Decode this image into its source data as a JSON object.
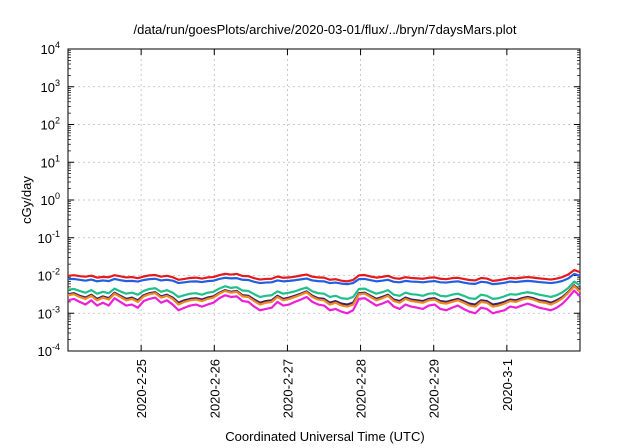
{
  "chart_data": {
    "type": "line",
    "title": "/data/run/goesPlots/archive/2020-03-01/flux/../bryn/7daysMars.plot",
    "xlabel": "Coordinated Universal Time (UTC)",
    "ylabel": "cGy/day",
    "y_scale": "log",
    "ylim": [
      0.0001,
      10000
    ],
    "xlim_days": [
      0,
      7
    ],
    "grid": true,
    "x_ticks": [
      {
        "day": 1,
        "label": "2020-2-25"
      },
      {
        "day": 2,
        "label": "2020-2-26"
      },
      {
        "day": 3,
        "label": "2020-2-27"
      },
      {
        "day": 4,
        "label": "2020-2-28"
      },
      {
        "day": 5,
        "label": "2020-2-29"
      },
      {
        "day": 6,
        "label": "2020-3-1"
      }
    ],
    "y_ticks": [
      {
        "value": 0.0001,
        "base": "10",
        "exp": "-4"
      },
      {
        "value": 0.001,
        "base": "10",
        "exp": "-3"
      },
      {
        "value": 0.01,
        "base": "10",
        "exp": "-2"
      },
      {
        "value": 0.1,
        "base": "10",
        "exp": "-1"
      },
      {
        "value": 1,
        "base": "10",
        "exp": "0"
      },
      {
        "value": 10,
        "base": "10",
        "exp": "1"
      },
      {
        "value": 100,
        "base": "10",
        "exp": "2"
      },
      {
        "value": 1000,
        "base": "10",
        "exp": "3"
      },
      {
        "value": 10000,
        "base": "10",
        "exp": "4"
      }
    ],
    "series": [
      {
        "color": "#e41a1c",
        "values": [
          0.0098,
          0.0102,
          0.0096,
          0.0093,
          0.0099,
          0.0088,
          0.0092,
          0.009,
          0.0102,
          0.0095,
          0.0089,
          0.0091,
          0.0085,
          0.0094,
          0.0101,
          0.0103,
          0.0093,
          0.0098,
          0.009,
          0.0077,
          0.0081,
          0.0086,
          0.0088,
          0.0083,
          0.0089,
          0.0091,
          0.0102,
          0.0111,
          0.0106,
          0.011,
          0.0097,
          0.0096,
          0.0085,
          0.0078,
          0.0081,
          0.0082,
          0.0094,
          0.0087,
          0.0089,
          0.0093,
          0.01,
          0.0106,
          0.0093,
          0.0089,
          0.0088,
          0.0077,
          0.008,
          0.0073,
          0.007,
          0.0076,
          0.0101,
          0.0103,
          0.0094,
          0.0088,
          0.0092,
          0.0098,
          0.0085,
          0.0082,
          0.009,
          0.0086,
          0.0084,
          0.0082,
          0.0087,
          0.0089,
          0.0082,
          0.008,
          0.0085,
          0.0087,
          0.0081,
          0.0076,
          0.0074,
          0.0086,
          0.0083,
          0.0072,
          0.0075,
          0.008,
          0.0086,
          0.0084,
          0.0088,
          0.0091,
          0.0088,
          0.0084,
          0.0081,
          0.0078,
          0.0083,
          0.0091,
          0.0107,
          0.0139,
          0.0123
        ]
      },
      {
        "color": "#1f5fe0",
        "values": [
          0.008,
          0.0081,
          0.0077,
          0.0073,
          0.0078,
          0.007,
          0.0074,
          0.0071,
          0.0081,
          0.0075,
          0.0071,
          0.0072,
          0.0069,
          0.0076,
          0.008,
          0.0082,
          0.0074,
          0.0077,
          0.0073,
          0.0063,
          0.0066,
          0.0069,
          0.007,
          0.0067,
          0.0071,
          0.0073,
          0.0081,
          0.0087,
          0.0084,
          0.0085,
          0.0077,
          0.0076,
          0.0068,
          0.0063,
          0.0065,
          0.0066,
          0.0074,
          0.007,
          0.0072,
          0.0075,
          0.0079,
          0.0083,
          0.0074,
          0.0071,
          0.007,
          0.0063,
          0.0065,
          0.0061,
          0.0059,
          0.0063,
          0.008,
          0.0081,
          0.0075,
          0.007,
          0.0073,
          0.0077,
          0.0068,
          0.0066,
          0.0072,
          0.0069,
          0.0068,
          0.0066,
          0.0069,
          0.0071,
          0.0066,
          0.0065,
          0.0068,
          0.007,
          0.0065,
          0.0061,
          0.006,
          0.0068,
          0.0066,
          0.0059,
          0.0061,
          0.0064,
          0.0069,
          0.0067,
          0.007,
          0.0072,
          0.007,
          0.0067,
          0.0065,
          0.0063,
          0.0066,
          0.0072,
          0.0084,
          0.011,
          0.0098
        ]
      },
      {
        "color": "#1fc08a",
        "values": [
          0.0042,
          0.0044,
          0.0039,
          0.0035,
          0.0041,
          0.0033,
          0.0037,
          0.0034,
          0.0045,
          0.0038,
          0.0033,
          0.0035,
          0.0031,
          0.0039,
          0.0044,
          0.0046,
          0.0037,
          0.0041,
          0.0035,
          0.0027,
          0.003,
          0.0033,
          0.0034,
          0.0031,
          0.0035,
          0.0037,
          0.0045,
          0.0052,
          0.0047,
          0.0049,
          0.004,
          0.0039,
          0.0032,
          0.0027,
          0.0029,
          0.003,
          0.0038,
          0.0033,
          0.0035,
          0.0038,
          0.0043,
          0.0048,
          0.0038,
          0.0034,
          0.0033,
          0.0027,
          0.0029,
          0.0025,
          0.0024,
          0.0027,
          0.0044,
          0.0045,
          0.0038,
          0.0033,
          0.0036,
          0.0041,
          0.0031,
          0.0029,
          0.0035,
          0.0032,
          0.0031,
          0.0029,
          0.0033,
          0.0034,
          0.0029,
          0.0028,
          0.0031,
          0.0033,
          0.0029,
          0.0025,
          0.0024,
          0.0031,
          0.0029,
          0.0024,
          0.0025,
          0.0028,
          0.0032,
          0.0031,
          0.0034,
          0.0036,
          0.0034,
          0.0031,
          0.0029,
          0.0027,
          0.003,
          0.0036,
          0.0047,
          0.0069,
          0.0055
        ]
      },
      {
        "color": "#3d1f6e",
        "values": [
          0.0032,
          0.0034,
          0.0029,
          0.0026,
          0.0031,
          0.0024,
          0.0028,
          0.0025,
          0.0035,
          0.0029,
          0.0024,
          0.0026,
          0.0022,
          0.003,
          0.0034,
          0.0036,
          0.0028,
          0.0031,
          0.0026,
          0.0019,
          0.0022,
          0.0024,
          0.0025,
          0.0023,
          0.0026,
          0.0028,
          0.0035,
          0.0041,
          0.0037,
          0.0039,
          0.003,
          0.0029,
          0.0023,
          0.0019,
          0.0021,
          0.0022,
          0.0029,
          0.0024,
          0.0026,
          0.0029,
          0.0033,
          0.0038,
          0.0029,
          0.0025,
          0.0024,
          0.0019,
          0.0021,
          0.0018,
          0.0017,
          0.0019,
          0.0034,
          0.0035,
          0.0029,
          0.0024,
          0.0027,
          0.0031,
          0.0023,
          0.0021,
          0.0026,
          0.0023,
          0.0022,
          0.0021,
          0.0024,
          0.0025,
          0.0021,
          0.002,
          0.0022,
          0.0024,
          0.0021,
          0.0018,
          0.0017,
          0.0022,
          0.0021,
          0.0017,
          0.0018,
          0.002,
          0.0023,
          0.0022,
          0.0025,
          0.0027,
          0.0025,
          0.0022,
          0.0021,
          0.0019,
          0.0022,
          0.0027,
          0.0037,
          0.0055,
          0.004
        ]
      },
      {
        "color": "#f08a1e",
        "values": [
          0.003,
          0.0032,
          0.0027,
          0.0024,
          0.0029,
          0.0022,
          0.0026,
          0.0023,
          0.0033,
          0.0027,
          0.0022,
          0.0024,
          0.002,
          0.0028,
          0.0032,
          0.0034,
          0.0026,
          0.0029,
          0.0024,
          0.0017,
          0.002,
          0.0022,
          0.0023,
          0.0021,
          0.0024,
          0.0026,
          0.0033,
          0.0039,
          0.0035,
          0.0037,
          0.0028,
          0.0027,
          0.0021,
          0.0017,
          0.0019,
          0.002,
          0.0027,
          0.0022,
          0.0024,
          0.0027,
          0.0031,
          0.0036,
          0.0027,
          0.0023,
          0.0022,
          0.0017,
          0.0019,
          0.0016,
          0.0015,
          0.0017,
          0.0032,
          0.0033,
          0.0027,
          0.0022,
          0.0025,
          0.0029,
          0.0021,
          0.0019,
          0.0024,
          0.0021,
          0.002,
          0.0019,
          0.0022,
          0.0023,
          0.0019,
          0.0018,
          0.002,
          0.0022,
          0.0019,
          0.0016,
          0.0015,
          0.002,
          0.0019,
          0.0015,
          0.0016,
          0.0018,
          0.0021,
          0.002,
          0.0023,
          0.0025,
          0.0023,
          0.002,
          0.0019,
          0.0017,
          0.002,
          0.0025,
          0.0035,
          0.0052,
          0.0037
        ]
      },
      {
        "color": "#ee1fd8",
        "values": [
          0.0022,
          0.0024,
          0.002,
          0.0017,
          0.0022,
          0.0016,
          0.0019,
          0.0016,
          0.0025,
          0.002,
          0.0016,
          0.0017,
          0.0014,
          0.0021,
          0.0024,
          0.0026,
          0.0019,
          0.0022,
          0.0017,
          0.0012,
          0.0014,
          0.0016,
          0.0017,
          0.0015,
          0.0017,
          0.0019,
          0.0025,
          0.003,
          0.0027,
          0.0028,
          0.0021,
          0.002,
          0.0015,
          0.0012,
          0.0013,
          0.0014,
          0.002,
          0.0016,
          0.0017,
          0.002,
          0.0023,
          0.0027,
          0.002,
          0.0017,
          0.0016,
          0.0012,
          0.0013,
          0.0011,
          0.001,
          0.0012,
          0.0024,
          0.0025,
          0.002,
          0.0016,
          0.0018,
          0.0021,
          0.0015,
          0.0013,
          0.0017,
          0.0015,
          0.0014,
          0.0013,
          0.0016,
          0.0017,
          0.0013,
          0.0012,
          0.0014,
          0.0016,
          0.0013,
          0.0011,
          0.001,
          0.0014,
          0.0013,
          0.001,
          0.0011,
          0.0012,
          0.0015,
          0.0014,
          0.0016,
          0.0018,
          0.0016,
          0.0014,
          0.0013,
          0.0012,
          0.0014,
          0.0018,
          0.0026,
          0.004,
          0.0028
        ]
      }
    ]
  }
}
